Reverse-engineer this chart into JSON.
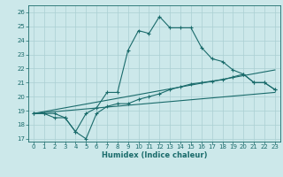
{
  "xlabel": "Humidex (Indice chaleur)",
  "bg_color": "#cce8ea",
  "grid_color": "#aacfd2",
  "line_color": "#1a6b6b",
  "xlim": [
    -0.5,
    23.5
  ],
  "ylim": [
    16.8,
    26.5
  ],
  "yticks": [
    17,
    18,
    19,
    20,
    21,
    22,
    23,
    24,
    25,
    26
  ],
  "xticks": [
    0,
    1,
    2,
    3,
    4,
    5,
    6,
    7,
    8,
    9,
    10,
    11,
    12,
    13,
    14,
    15,
    16,
    17,
    18,
    19,
    20,
    21,
    22,
    23
  ],
  "line1_x": [
    0,
    1,
    2,
    3,
    4,
    5,
    6,
    7,
    8,
    9,
    10,
    11,
    12,
    13,
    14,
    15,
    16,
    17,
    18,
    19,
    20,
    21,
    22,
    23
  ],
  "line1_y": [
    18.8,
    18.8,
    18.8,
    18.5,
    17.5,
    18.8,
    19.2,
    20.3,
    20.3,
    23.3,
    24.7,
    24.5,
    25.7,
    24.9,
    24.9,
    24.9,
    23.5,
    22.7,
    22.5,
    21.9,
    21.6,
    21.0,
    21.0,
    20.5
  ],
  "line2_x": [
    0,
    1,
    2,
    3,
    4,
    5,
    6,
    7,
    8,
    9,
    10,
    11,
    12,
    13,
    14,
    15,
    16,
    17,
    18,
    19,
    20,
    21,
    22,
    23
  ],
  "line2_y": [
    18.8,
    18.8,
    18.5,
    18.5,
    17.5,
    17.0,
    18.8,
    19.3,
    19.5,
    19.5,
    19.8,
    20.0,
    20.2,
    20.5,
    20.7,
    20.9,
    21.0,
    21.1,
    21.2,
    21.4,
    21.6,
    21.0,
    21.0,
    20.5
  ],
  "line3_x": [
    0,
    23
  ],
  "line3_y": [
    18.8,
    21.9
  ],
  "line4_x": [
    0,
    23
  ],
  "line4_y": [
    18.8,
    20.3
  ]
}
